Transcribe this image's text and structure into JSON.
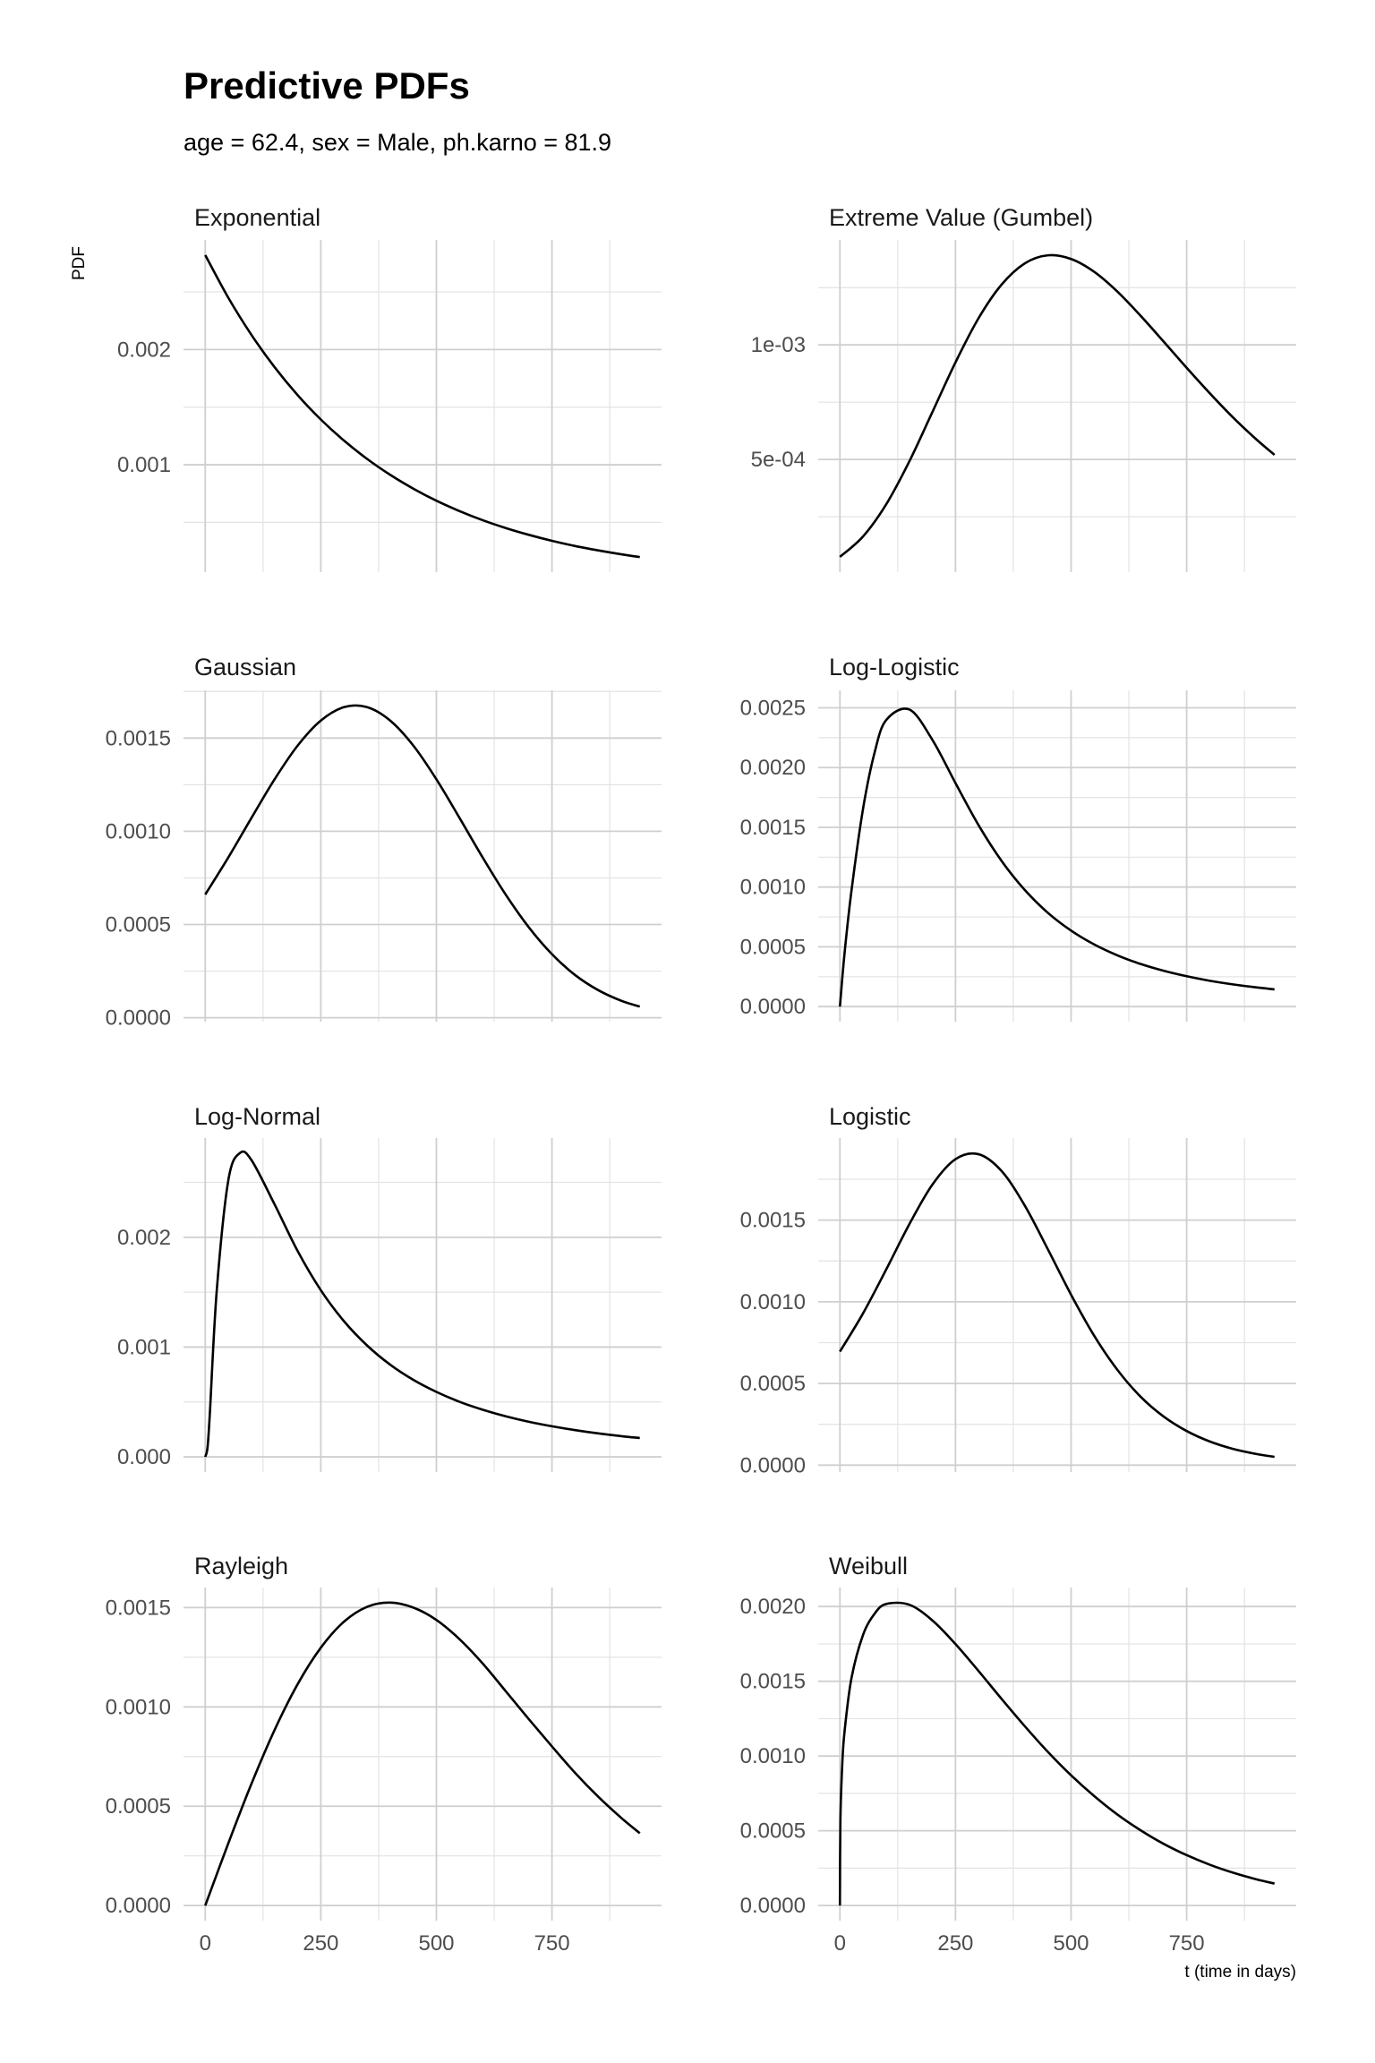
{
  "chart_data": {
    "type": "line",
    "title": "Predictive PDFs",
    "subtitle": "age = 62.4, sex = Male, ph.karno = 81.9",
    "xlabel": "t (time in days)",
    "ylabel": "PDF",
    "grid": true,
    "xlim": [
      -47,
      987
    ],
    "x_ticks": [
      0,
      250,
      500,
      750
    ],
    "x_tick_labels": [
      "0",
      "250",
      "500",
      "750"
    ],
    "line_color": "#000000",
    "panels": [
      {
        "title": "Exponential",
        "ylim": [
          6.8e-05,
          0.002951
        ],
        "y_ticks": [
          0.001,
          0.002
        ],
        "y_tick_labels": [
          "0.001",
          "0.002"
        ],
        "x": [
          0,
          50,
          100,
          150,
          200,
          250,
          300,
          350,
          400,
          450,
          500,
          550,
          600,
          650,
          700,
          750,
          800,
          850,
          900,
          940
        ],
        "y": [
          0.00282,
          0.002449,
          0.002127,
          0.001847,
          0.001604,
          0.001393,
          0.00121,
          0.001051,
          0.000913,
          0.000793,
          0.000688,
          0.000598,
          0.000519,
          0.000451,
          0.000392,
          0.00034,
          0.000295,
          0.000257,
          0.000223,
          0.000199
        ]
      },
      {
        "title": "Extreme Value (Gumbel)",
        "ylim": [
          8.1e-06,
          0.001458
        ],
        "y_ticks": [
          0.0005,
          0.001
        ],
        "y_tick_labels": [
          "5e-04",
          "1e-03"
        ],
        "x": [
          0,
          50,
          100,
          150,
          200,
          250,
          300,
          350,
          400,
          450,
          500,
          550,
          600,
          650,
          700,
          750,
          800,
          850,
          900,
          940
        ],
        "y": [
          7.47e-05,
          0.000164,
          0.000304,
          0.000491,
          0.000707,
          0.000924,
          0.001117,
          0.001264,
          0.001356,
          0.001391,
          0.001375,
          0.001319,
          0.001233,
          0.001128,
          0.001015,
          0.0009,
          0.000789,
          0.000684,
          0.000589,
          0.00052
        ]
      },
      {
        "title": "Gaussian",
        "ylim": [
          -2.1e-05,
          0.001756
        ],
        "y_ticks": [
          0,
          0.0005,
          0.001,
          0.0015
        ],
        "y_tick_labels": [
          "0.0000",
          "0.0005",
          "0.0010",
          "0.0015"
        ],
        "x": [
          0,
          50,
          100,
          150,
          200,
          250,
          300,
          350,
          400,
          450,
          500,
          550,
          600,
          650,
          700,
          750,
          800,
          850,
          900,
          940
        ],
        "y": [
          0.000661,
          0.00086,
          0.001072,
          0.001279,
          0.00146,
          0.001594,
          0.001666,
          0.001666,
          0.001594,
          0.00146,
          0.001279,
          0.001072,
          0.00086,
          0.00066,
          0.000485,
          0.000341,
          0.000229,
          0.000148,
          9.09e-05,
          5.98e-05
        ]
      },
      {
        "title": "Log-Logistic",
        "ylim": [
          -0.000126,
          0.002646
        ],
        "y_ticks": [
          0,
          0.0005,
          0.001,
          0.0015,
          0.002,
          0.0025
        ],
        "y_tick_labels": [
          "0.0000",
          "0.0005",
          "0.0010",
          "0.0015",
          "0.0020",
          "0.0025"
        ],
        "x": [
          0,
          10,
          25,
          50,
          75,
          100,
          150,
          200,
          250,
          300,
          350,
          400,
          450,
          500,
          550,
          600,
          650,
          700,
          750,
          800,
          850,
          900,
          940
        ],
        "y": [
          0,
          0.000446,
          0.00097,
          0.001655,
          0.002126,
          0.002397,
          0.002486,
          0.002232,
          0.00187,
          0.001517,
          0.001217,
          0.000975,
          0.000784,
          0.000636,
          0.00052,
          0.000429,
          0.000357,
          0.0003,
          0.000254,
          0.000216,
          0.000186,
          0.000161,
          0.000144
        ]
      },
      {
        "title": "Log-Normal",
        "ylim": [
          -0.000138,
          0.002904
        ],
        "y_ticks": [
          0,
          0.001,
          0.002
        ],
        "y_tick_labels": [
          "0.000",
          "0.001",
          "0.002"
        ],
        "x": [
          0,
          5,
          10,
          25,
          50,
          75,
          100,
          150,
          200,
          250,
          300,
          350,
          400,
          450,
          500,
          550,
          600,
          650,
          700,
          750,
          800,
          850,
          900,
          940
        ],
        "y": [
          0,
          8.75e-05,
          0.000399,
          0.00152,
          0.002521,
          0.002768,
          0.002703,
          0.0023,
          0.001874,
          0.001518,
          0.001236,
          0.001015,
          0.00084,
          0.000702,
          0.000592,
          0.000502,
          0.00043,
          0.00037,
          0.00032,
          0.000279,
          0.000244,
          0.000214,
          0.000189,
          0.000172
        ]
      },
      {
        "title": "Logistic",
        "ylim": [
          -4.2e-05,
          0.002002
        ],
        "y_ticks": [
          0,
          0.0005,
          0.001,
          0.0015
        ],
        "y_tick_labels": [
          "0.0000",
          "0.0005",
          "0.0010",
          "0.0015"
        ],
        "x": [
          0,
          50,
          100,
          150,
          200,
          250,
          300,
          350,
          400,
          450,
          500,
          550,
          600,
          650,
          700,
          750,
          800,
          850,
          900,
          940
        ],
        "y": [
          0.000695,
          0.000929,
          0.001197,
          0.001474,
          0.001717,
          0.001873,
          0.001903,
          0.001799,
          0.001588,
          0.00132,
          0.001043,
          0.000792,
          0.000584,
          0.00042,
          0.000298,
          0.000209,
          0.000145,
          0.0001,
          6.9e-05,
          5.11e-05
        ]
      },
      {
        "title": "Rayleigh",
        "ylim": [
          -7.6e-05,
          0.001601
        ],
        "y_ticks": [
          0,
          0.0005,
          0.001,
          0.0015
        ],
        "y_tick_labels": [
          "0.0000",
          "0.0005",
          "0.0010",
          "0.0015"
        ],
        "x": [
          0,
          50,
          100,
          150,
          200,
          250,
          300,
          350,
          400,
          450,
          500,
          550,
          600,
          650,
          700,
          750,
          800,
          850,
          900,
          940
        ],
        "y": [
          0,
          0.000314,
          0.000613,
          0.000884,
          0.001115,
          0.001298,
          0.001429,
          0.001504,
          0.001525,
          0.0015,
          0.001438,
          0.001341,
          0.001219,
          0.001079,
          0.000938,
          0.000801,
          0.000668,
          0.000548,
          0.000441,
          0.000364
        ]
      },
      {
        "title": "Weibull",
        "ylim": [
          -0.000101,
          0.002127
        ],
        "y_ticks": [
          0,
          0.0005,
          0.001,
          0.0015,
          0.002
        ],
        "y_tick_labels": [
          "0.0000",
          "0.0005",
          "0.0010",
          "0.0015",
          "0.0020"
        ],
        "x": [
          0,
          1,
          5,
          10,
          25,
          50,
          75,
          100,
          150,
          200,
          250,
          300,
          350,
          400,
          450,
          500,
          550,
          600,
          650,
          700,
          750,
          800,
          850,
          900,
          940
        ],
        "y": [
          0,
          0.000569,
          0.00094,
          0.001164,
          0.001521,
          0.00181,
          0.001952,
          0.002017,
          0.002012,
          0.001907,
          0.001749,
          0.001568,
          0.001381,
          0.001199,
          0.001027,
          0.000871,
          0.000732,
          0.000609,
          0.000504,
          0.000413,
          0.000337,
          0.000273,
          0.00022,
          0.000176,
          0.000147
        ]
      }
    ]
  }
}
